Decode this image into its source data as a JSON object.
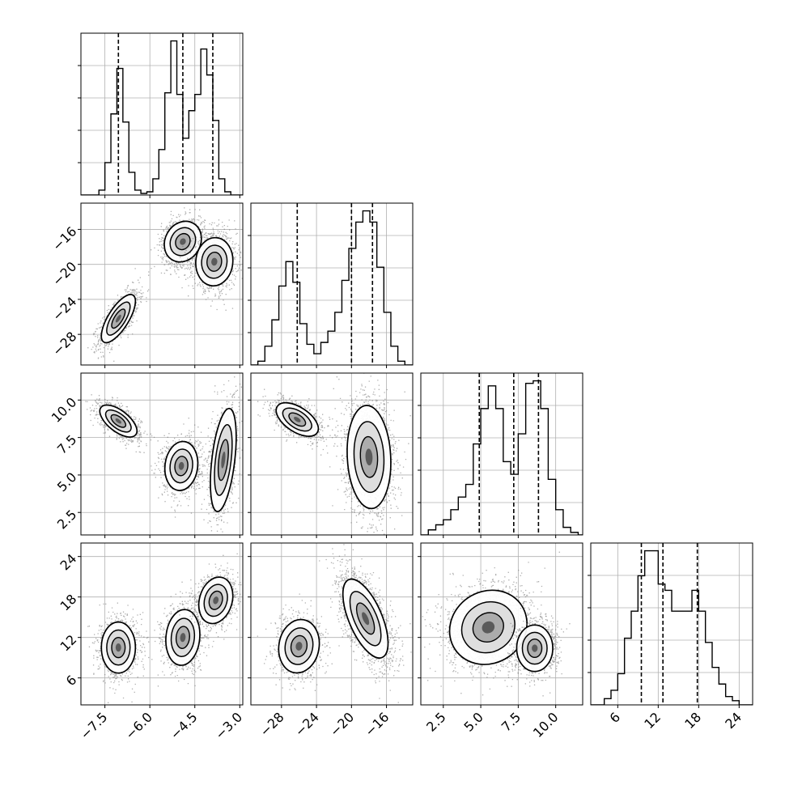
{
  "chart_data": {
    "type": "corner",
    "grid": true,
    "parameters": [
      {
        "lim": [
          -8.3,
          -2.9
        ],
        "ticks": [
          -7.5,
          -6.0,
          -4.5,
          -3.0
        ],
        "tick_labels": [
          "−7.5",
          "−6.0",
          "−4.5",
          "−3.0"
        ],
        "quantiles": [
          -7.05,
          -4.9,
          -3.9
        ],
        "hist": {
          "bins": [
            -8.3,
            -8.1,
            -7.9,
            -7.7,
            -7.5,
            -7.3,
            -7.1,
            -6.9,
            -6.7,
            -6.5,
            -6.3,
            -6.1,
            -5.9,
            -5.7,
            -5.5,
            -5.3,
            -5.1,
            -4.9,
            -4.7,
            -4.5,
            -4.3,
            -4.1,
            -3.9,
            -3.7,
            -3.5,
            -3.3,
            -3.1,
            -2.9
          ],
          "counts": [
            0,
            0,
            0,
            0.03,
            0.2,
            0.5,
            0.78,
            0.45,
            0.14,
            0.03,
            0.01,
            0.02,
            0.1,
            0.28,
            0.63,
            0.95,
            0.62,
            0.35,
            0.52,
            0.62,
            0.9,
            0.74,
            0.46,
            0.1,
            0.02,
            0,
            0
          ]
        }
      },
      {
        "lim": [
          -31.5,
          -13.0
        ],
        "ticks": [
          -28,
          -24,
          -20,
          -16
        ],
        "tick_labels": [
          "−28",
          "−24",
          "−20",
          "−16"
        ],
        "quantiles": [
          -26.2,
          -20.0,
          -17.6
        ],
        "hist": {
          "bins": [
            -31.5,
            -30.7,
            -29.9,
            -29.1,
            -28.3,
            -27.5,
            -26.7,
            -25.9,
            -25.1,
            -24.3,
            -23.5,
            -22.7,
            -21.9,
            -21.1,
            -20.3,
            -19.5,
            -18.7,
            -17.9,
            -17.1,
            -16.3,
            -15.5,
            -14.7,
            -13.9,
            -13.0
          ],
          "counts": [
            0,
            0.02,
            0.1,
            0.24,
            0.42,
            0.55,
            0.44,
            0.22,
            0.11,
            0.06,
            0.12,
            0.18,
            0.28,
            0.45,
            0.62,
            0.76,
            0.82,
            0.76,
            0.52,
            0.28,
            0.1,
            0.02,
            0
          ]
        }
      },
      {
        "lim": [
          1.0,
          11.8
        ],
        "ticks": [
          2.5,
          5.0,
          7.5,
          10.0
        ],
        "tick_labels": [
          "2.5",
          "5.0",
          "7.5",
          "10.0"
        ],
        "quantiles": [
          4.9,
          7.2,
          8.85
        ],
        "hist": {
          "bins": [
            1.0,
            1.5,
            2.0,
            2.5,
            3.0,
            3.5,
            4.0,
            4.5,
            5.0,
            5.5,
            6.0,
            6.5,
            7.0,
            7.5,
            8.0,
            8.5,
            9.0,
            9.5,
            10.0,
            10.5,
            11.0,
            11.5,
            11.8
          ],
          "counts": [
            0,
            0.02,
            0.04,
            0.06,
            0.1,
            0.15,
            0.2,
            0.36,
            0.5,
            0.59,
            0.5,
            0.29,
            0.24,
            0.4,
            0.6,
            0.61,
            0.5,
            0.22,
            0.1,
            0.03,
            0.01,
            0
          ]
        }
      },
      {
        "lim": [
          2.0,
          26.0
        ],
        "ticks": [
          6,
          12,
          18,
          24
        ],
        "tick_labels": [
          "6",
          "12",
          "18",
          "24"
        ],
        "quantiles": [
          9.5,
          12.7,
          17.8
        ],
        "hist": {
          "bins": [
            2.0,
            3.0,
            4.0,
            5.0,
            6.0,
            7.0,
            8.0,
            9.0,
            10.0,
            11.0,
            12.0,
            13.0,
            14.0,
            15.0,
            16.0,
            17.0,
            18.0,
            19.0,
            20.0,
            21.0,
            22.0,
            23.0,
            24.0,
            25.0,
            26.0
          ],
          "counts": [
            0,
            0,
            0.03,
            0.07,
            0.15,
            0.32,
            0.45,
            0.62,
            0.74,
            0.74,
            0.58,
            0.55,
            0.45,
            0.45,
            0.45,
            0.55,
            0.45,
            0.3,
            0.18,
            0.1,
            0.04,
            0.02,
            0,
            0
          ]
        }
      }
    ],
    "pairs": [
      {
        "row": 1,
        "col": 0,
        "clusters": [
          {
            "cx": -7.05,
            "cy": -26.2,
            "sx": 0.33,
            "sy": 1.6,
            "rho": 0.72,
            "n": 1100
          },
          {
            "cx": -4.9,
            "cy": -17.4,
            "sx": 0.36,
            "sy": 1.35,
            "rho": 0.15,
            "n": 1150
          },
          {
            "cx": -3.85,
            "cy": -19.7,
            "sx": 0.36,
            "sy": 1.6,
            "rho": 0.05,
            "n": 1150
          }
        ]
      },
      {
        "row": 2,
        "col": 0,
        "clusters": [
          {
            "cx": -7.05,
            "cy": 8.6,
            "sx": 0.36,
            "sy": 0.62,
            "rho": -0.62,
            "n": 1100
          },
          {
            "cx": -4.95,
            "cy": 5.6,
            "sx": 0.32,
            "sy": 0.95,
            "rho": 0.1,
            "n": 1100
          },
          {
            "cx": -3.55,
            "cy": 6.0,
            "sx": 0.25,
            "sy": 2.0,
            "rho": 0.45,
            "n": 1100
          }
        ]
      },
      {
        "row": 2,
        "col": 1,
        "clusters": [
          {
            "cx": -26.2,
            "cy": 8.7,
            "sx": 1.4,
            "sy": 0.65,
            "rho": -0.55,
            "n": 1100
          },
          {
            "cx": -18.0,
            "cy": 6.2,
            "sx": 1.45,
            "sy": 2.0,
            "rho": -0.1,
            "n": 1600
          }
        ]
      },
      {
        "row": 3,
        "col": 0,
        "clusters": [
          {
            "cx": -7.05,
            "cy": 10.5,
            "sx": 0.33,
            "sy": 2.2,
            "rho": 0.0,
            "n": 1100
          },
          {
            "cx": -4.9,
            "cy": 12.0,
            "sx": 0.33,
            "sy": 2.4,
            "rho": 0.1,
            "n": 1100
          },
          {
            "cx": -3.8,
            "cy": 17.5,
            "sx": 0.33,
            "sy": 2.0,
            "rho": 0.2,
            "n": 1100
          }
        ]
      },
      {
        "row": 3,
        "col": 1,
        "clusters": [
          {
            "cx": -26.0,
            "cy": 10.7,
            "sx": 1.35,
            "sy": 2.3,
            "rho": 0.1,
            "n": 1100
          },
          {
            "cx": -18.4,
            "cy": 14.8,
            "sx": 1.5,
            "sy": 3.4,
            "rho": -0.62,
            "n": 2100
          }
        ]
      },
      {
        "row": 3,
        "col": 2,
        "clusters": [
          {
            "cx": 5.5,
            "cy": 13.5,
            "sx": 1.5,
            "sy": 3.2,
            "rho": 0.1,
            "n": 1800
          },
          {
            "cx": 8.6,
            "cy": 10.4,
            "sx": 0.7,
            "sy": 2.0,
            "rho": 0.0,
            "n": 1100
          }
        ]
      }
    ]
  }
}
